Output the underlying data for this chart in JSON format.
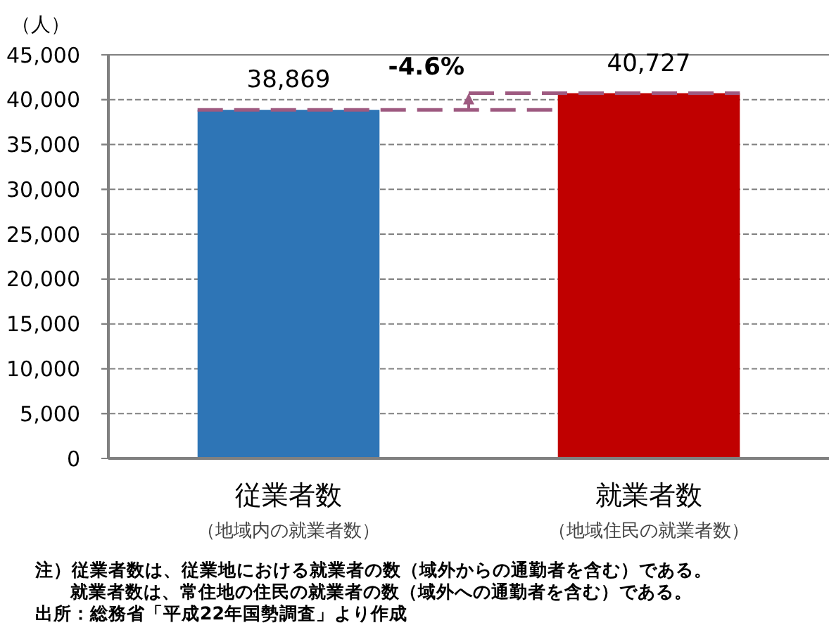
{
  "chart_data": {
    "type": "bar",
    "ylabel": "（人）",
    "categories": [
      "従業者数（地域内の就業者数）",
      "就業者数（地域住民の就業者数）"
    ],
    "values": [
      38869,
      40727
    ],
    "value_labels": [
      "38,869",
      "40,727"
    ],
    "colors": [
      "#2e75b6",
      "#c00000"
    ],
    "ylim": [
      0,
      45000
    ],
    "yticks": [
      0,
      {
        "value": 5000,
        "label": "5,000"
      },
      {
        "value": 10000,
        "label": "10,000"
      },
      {
        "value": 15000,
        "label": "15,000"
      },
      {
        "value": 20000,
        "label": "20,000"
      },
      {
        "value": 25000,
        "label": "25,000"
      },
      {
        "value": 30000,
        "label": "30,000"
      },
      {
        "value": 35000,
        "label": "35,000"
      },
      {
        "value": 40000,
        "label": "40,000"
      },
      {
        "value": 45000,
        "label": "45,000"
      }
    ],
    "grid": "y",
    "ref_lines": [
      {
        "axis": "y",
        "value": 38869,
        "color": "#9e5a80",
        "line_style": "dashed"
      },
      {
        "axis": "y",
        "value": 40727,
        "color": "#9e5a80",
        "line_style": "dashed"
      }
    ],
    "annotations": [
      "-4.6%",
      "注）従業者数は、従業地における就業者の数（域外からの通勤者を含む）である。",
      "就業者数は、常住地の住民の就業者の数（域外への通勤者を含む）である。",
      "出所：総務省「平成22年国勢調査」より作成"
    ]
  }
}
